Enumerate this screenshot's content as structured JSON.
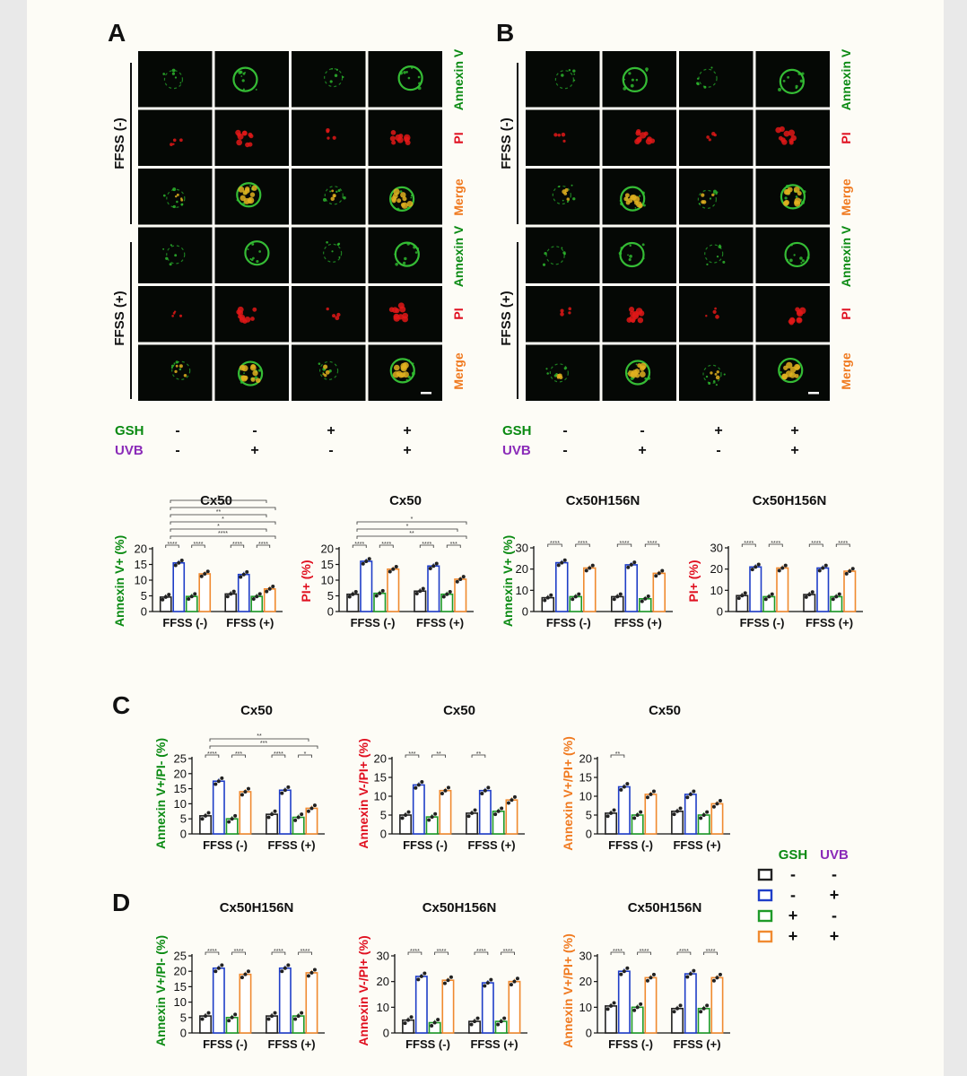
{
  "panels": {
    "A": {
      "letter": "A",
      "group_labels": [
        "FFSS (-)",
        "FFSS (+)"
      ],
      "row_labels": [
        "Annexin V",
        "PI",
        "Merge",
        "Annexin V",
        "PI",
        "Merge"
      ]
    },
    "B": {
      "letter": "B",
      "group_labels": [
        "FFSS (-)",
        "FFSS (+)"
      ],
      "row_labels": [
        "Annexin V",
        "PI",
        "Merge",
        "Annexin V",
        "PI",
        "Merge"
      ]
    },
    "C": {
      "letter": "C"
    },
    "D": {
      "letter": "D"
    }
  },
  "treatment_table": {
    "rows": [
      {
        "label": "GSH",
        "values": [
          "-",
          "-",
          "+",
          "+"
        ]
      },
      {
        "label": "UVB",
        "values": [
          "-",
          "+",
          "-",
          "+"
        ]
      }
    ]
  },
  "legend": {
    "headers": [
      "GSH",
      "UVB"
    ],
    "rows": [
      {
        "gsh": "-",
        "uvb": "-"
      },
      {
        "gsh": "-",
        "uvb": "+"
      },
      {
        "gsh": "+",
        "uvb": "-"
      },
      {
        "gsh": "+",
        "uvb": "+"
      }
    ]
  },
  "colors": {
    "green": "#0a8a12",
    "red": "#e01020",
    "orange": "#f07a20",
    "purple": "#8a2ab8",
    "bar_black": "#222222",
    "bar_blue": "#1f3ec8",
    "bar_green": "#1e9a28",
    "bar_orange": "#f08a30"
  },
  "chart_data": [
    {
      "type": "bar",
      "title": "Cx50",
      "ylabel": "Annexin V+ (%)",
      "categories": [
        "FFSS (-)",
        "FFSS (+)"
      ],
      "yticks": [
        0,
        5,
        10,
        15,
        20
      ],
      "ylim": [
        0,
        20
      ],
      "series": [
        {
          "values": [
            4.6,
            5.6
          ]
        },
        {
          "values": [
            15.5,
            11.8
          ]
        },
        {
          "values": [
            4.8,
            4.8
          ]
        },
        {
          "values": [
            12.0,
            7.2
          ]
        }
      ],
      "annotations": [
        "****",
        "****",
        "****",
        "****",
        "****",
        "*",
        "*",
        "**",
        "**",
        "*"
      ]
    },
    {
      "type": "bar",
      "title": "Cx50",
      "ylabel": "PI+ (%)",
      "categories": [
        "FFSS (-)",
        "FFSS (+)"
      ],
      "yticks": [
        0,
        5,
        10,
        15,
        20
      ],
      "ylim": [
        0,
        20
      ],
      "series": [
        {
          "values": [
            5.5,
            6.5
          ]
        },
        {
          "values": [
            16.0,
            14.5
          ]
        },
        {
          "values": [
            5.8,
            5.5
          ]
        },
        {
          "values": [
            13.5,
            10.3
          ]
        }
      ],
      "annotations": [
        "****",
        "****",
        "****",
        "***",
        "**",
        "*",
        "*"
      ]
    },
    {
      "type": "bar",
      "title": "Cx50H156N",
      "ylabel": "Annexin V+ (%)",
      "categories": [
        "FFSS (-)",
        "FFSS (+)"
      ],
      "yticks": [
        0,
        10,
        20,
        30
      ],
      "ylim": [
        0,
        30
      ],
      "series": [
        {
          "values": [
            6.5,
            7.0
          ]
        },
        {
          "values": [
            23.0,
            22.0
          ]
        },
        {
          "values": [
            7.0,
            6.0
          ]
        },
        {
          "values": [
            20.5,
            18.0
          ]
        }
      ],
      "annotations": [
        "****",
        "****",
        "****",
        "****"
      ]
    },
    {
      "type": "bar",
      "title": "Cx50H156N",
      "ylabel": "PI+ (%)",
      "categories": [
        "FFSS (-)",
        "FFSS (+)"
      ],
      "yticks": [
        0,
        10,
        20,
        30
      ],
      "ylim": [
        0,
        30
      ],
      "series": [
        {
          "values": [
            7.5,
            8.0
          ]
        },
        {
          "values": [
            21.0,
            20.5
          ]
        },
        {
          "values": [
            7.0,
            7.0
          ]
        },
        {
          "values": [
            20.5,
            19.0
          ]
        }
      ],
      "annotations": [
        "****",
        "****",
        "****",
        "****"
      ]
    },
    {
      "type": "bar",
      "title": "Cx50",
      "ylabel": "Annexin V+/PI- (%)",
      "categories": [
        "FFSS (-)",
        "FFSS (+)"
      ],
      "yticks": [
        0,
        5,
        10,
        15,
        20,
        25
      ],
      "ylim": [
        0,
        25
      ],
      "series": [
        {
          "values": [
            6.0,
            6.5
          ]
        },
        {
          "values": [
            17.5,
            14.5
          ]
        },
        {
          "values": [
            5.0,
            5.5
          ]
        },
        {
          "values": [
            14.0,
            8.5
          ]
        }
      ],
      "annotations": [
        "****",
        "***",
        "****",
        "*",
        "***",
        "**"
      ]
    },
    {
      "type": "bar",
      "title": "Cx50",
      "ylabel": "Annexin V-/PI+ (%)",
      "categories": [
        "FFSS (-)",
        "FFSS (+)"
      ],
      "yticks": [
        0,
        5,
        10,
        15,
        20
      ],
      "ylim": [
        0,
        20
      ],
      "series": [
        {
          "values": [
            5.0,
            5.5
          ]
        },
        {
          "values": [
            13.0,
            11.5
          ]
        },
        {
          "values": [
            4.5,
            6.0
          ]
        },
        {
          "values": [
            11.5,
            9.0
          ]
        }
      ],
      "annotations": [
        "***",
        "**",
        "**"
      ]
    },
    {
      "type": "bar",
      "title": "Cx50",
      "ylabel": "Annexin V+/PI+ (%)",
      "categories": [
        "FFSS (-)",
        "FFSS (+)"
      ],
      "yticks": [
        0,
        5,
        10,
        15,
        20
      ],
      "ylim": [
        0,
        20
      ],
      "series": [
        {
          "values": [
            5.5,
            6.0
          ]
        },
        {
          "values": [
            12.5,
            10.5
          ]
        },
        {
          "values": [
            5.0,
            5.0
          ]
        },
        {
          "values": [
            10.5,
            8.0
          ]
        }
      ],
      "annotations": [
        "**"
      ]
    },
    {
      "type": "bar",
      "title": "Cx50H156N",
      "ylabel": "Annexin V+/PI- (%)",
      "categories": [
        "FFSS (-)",
        "FFSS (+)"
      ],
      "yticks": [
        0,
        5,
        10,
        15,
        20,
        25
      ],
      "ylim": [
        0,
        25
      ],
      "series": [
        {
          "values": [
            5.5,
            5.5
          ]
        },
        {
          "values": [
            21.0,
            21.0
          ]
        },
        {
          "values": [
            5.0,
            5.5
          ]
        },
        {
          "values": [
            19.0,
            19.5
          ]
        }
      ],
      "annotations": [
        "****",
        "****",
        "****",
        "****"
      ]
    },
    {
      "type": "bar",
      "title": "Cx50H156N",
      "ylabel": "Annexin V-/PI+ (%)",
      "categories": [
        "FFSS (-)",
        "FFSS (+)"
      ],
      "yticks": [
        0,
        10,
        20,
        30
      ],
      "ylim": [
        0,
        30
      ],
      "series": [
        {
          "values": [
            5.0,
            4.5
          ]
        },
        {
          "values": [
            22.0,
            19.5
          ]
        },
        {
          "values": [
            4.0,
            4.5
          ]
        },
        {
          "values": [
            20.5,
            20.0
          ]
        }
      ],
      "annotations": [
        "****",
        "****",
        "****",
        "****"
      ]
    },
    {
      "type": "bar",
      "title": "Cx50H156N",
      "ylabel": "Annexin V+/PI+ (%)",
      "categories": [
        "FFSS (-)",
        "FFSS (+)"
      ],
      "yticks": [
        0,
        10,
        20,
        30
      ],
      "ylim": [
        0,
        30
      ],
      "series": [
        {
          "values": [
            10.5,
            9.5
          ]
        },
        {
          "values": [
            24.0,
            23.0
          ]
        },
        {
          "values": [
            10.0,
            9.5
          ]
        },
        {
          "values": [
            21.5,
            21.5
          ]
        }
      ],
      "annotations": [
        "****",
        "****",
        "****",
        "****"
      ]
    }
  ]
}
